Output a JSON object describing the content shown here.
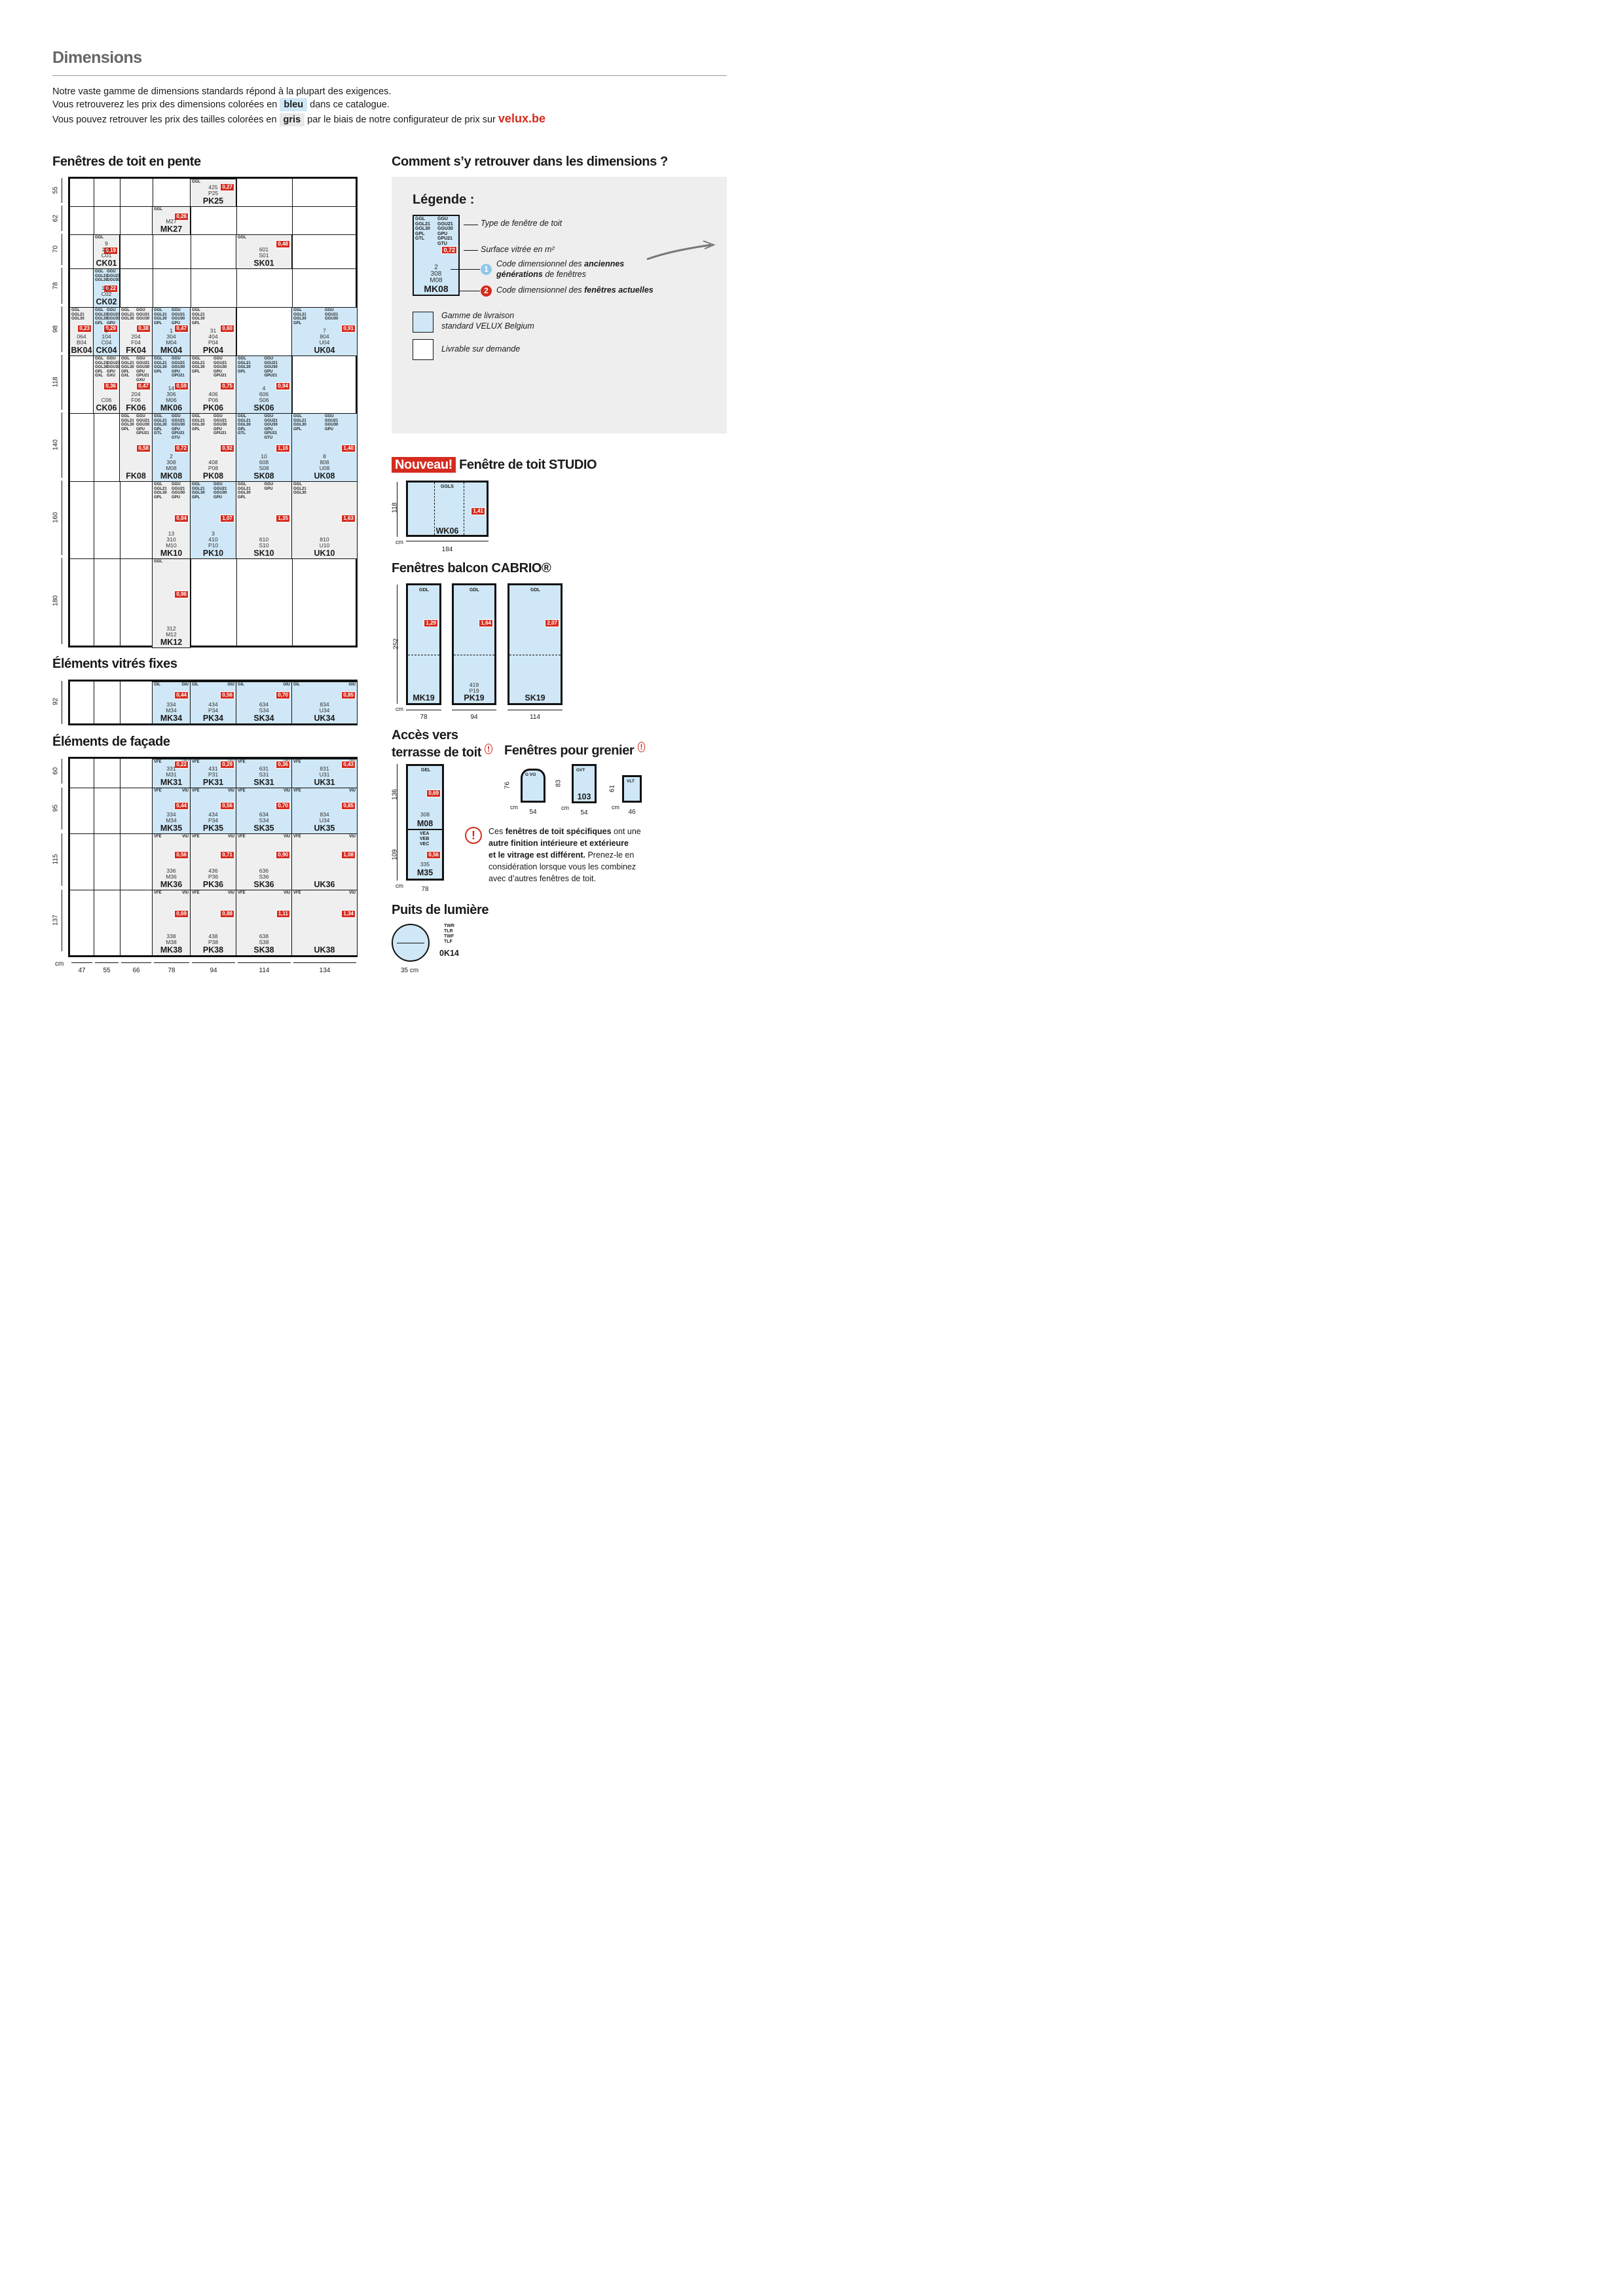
{
  "page": {
    "title": "Dimensions",
    "intro_line1": "Notre vaste gamme de dimensions standards répond à la plupart des exigences.",
    "intro_line2_pre": "Vous retrouverez les prix des dimensions colorées en",
    "intro_line2_chip": "bleu",
    "intro_line2_post": "dans ce catalogue.",
    "intro_line3_pre": "Vous pouvez retrouver les prix des tailles colorées en",
    "intro_line3_chip": "gris",
    "intro_line3_post": "par le biais de notre configurateur de prix sur",
    "intro_link": "velux.be"
  },
  "colors": {
    "blue": "#cfe7f6",
    "grey": "#efefef",
    "red": "#d52b1e"
  },
  "sections": {
    "pente": "Fenêtres de toit en pente",
    "comment": "Comment s’y retrouver dans les dimensions ?",
    "fixes": "Éléments vitrés fixes",
    "facade": "Éléments de façade",
    "nouveau": "Nouveau!",
    "studio": "Fenêtre de toit STUDIO",
    "cabrio": "Fenêtres balcon CABRIO®",
    "acces1": "Accès vers",
    "acces2": "terrasse de toit",
    "grenier": "Fenêtres pour grenier",
    "puits": "Puits de lumière"
  },
  "pente": {
    "rows": [
      "55",
      "62",
      "70",
      "78",
      "98",
      "118",
      "140",
      "160",
      "180"
    ],
    "cols": [
      "47",
      "55",
      "66",
      "78",
      "94",
      "114",
      "134"
    ],
    "unit": "cm",
    "cells": [
      {
        "t1": "GGL",
        "area": "0,27",
        "codes": "425\nP25",
        "name": "PK25"
      },
      {
        "t1": "GGL",
        "area": "0,26",
        "codes": "M27",
        "name": "MK27"
      },
      {
        "t1": "GGL",
        "area": "0,19",
        "codes": "9\n101\nC01",
        "name": "CK01"
      },
      {
        "t1": "GGL",
        "area": "0,48",
        "codes": "601\nS01",
        "name": "SK01"
      },
      {
        "t1": "GGL\nGGL21\nGGL30",
        "t2": "GGU\nGGU21\nGGU30",
        "area": "0,22",
        "codes": "102\nC02",
        "name": "CK02"
      },
      {
        "t1": "GGL\nGGL21\nGGL30",
        "area": "0,23",
        "codes": "064\nB04",
        "name": "BK04"
      },
      {
        "t1": "GGL\nGGL21\nGGL30\nGPL",
        "t2": "GGU\nGGU21\nGGU30\nGPU",
        "area": "0,29",
        "codes": "6\n104\nC04",
        "name": "CK04"
      },
      {
        "t1": "GGL\nGGL21\nGGL30",
        "t2": "GGU\nGGU21\nGGU30",
        "area": "0,38",
        "codes": "204\nF04",
        "name": "FK04"
      },
      {
        "t1": "GGL\nGGL21\nGGL30\nGPL",
        "t2": "GGU\nGGU21\nGGU30\nGPU",
        "area": "0,47",
        "codes": "1\n304\nM04",
        "name": "MK04"
      },
      {
        "t1": "GGL\nGGL21\nGGL30\nGPL",
        "area": "0,60",
        "codes": "31\n404\nP04",
        "name": "PK04"
      },
      {
        "t1": "GGL\nGGL21\nGGL30\nGPL",
        "t2": "GGU\nGGU21\nGGU30",
        "area": "0,91",
        "codes": "7\n804\nU04",
        "name": "UK04"
      },
      {
        "t1": "GGL\nGGL21\nGGL30\nGPL\nGXL",
        "t2": "GGU\nGGU21\nGGU30\nGPU\nGXU",
        "area": "0,36",
        "codes": "C06",
        "name": "CK06"
      },
      {
        "t1": "GGL\nGGL21\nGGL30\nGPL\nGXL",
        "t2": "GGU\nGGU21\nGGU30\nGPU\nGPU21\nGXU",
        "area": "0,47",
        "codes": "204\nF06",
        "name": "FK06"
      },
      {
        "t1": "GGL\nGGL21\nGGL30\nGPL",
        "t2": "GGU\nGGU21\nGGU30\nGPU\nGPU21",
        "area": "0,59",
        "codes": "14\n306\nM06",
        "name": "MK06"
      },
      {
        "t1": "GGL\nGGL21\nGGL30\nGPL",
        "t2": "GGU\nGGU21\nGGU30\nGPU\nGPU21",
        "area": "0,75",
        "codes": "406\nP06",
        "name": "PK06"
      },
      {
        "t1": "GGL\nGGL21\nGGL30\nGPL",
        "t2": "GGU\nGGU21\nGGU30\nGPU\nGPU21",
        "area": "0,94",
        "codes": "4\n606\nS06",
        "name": "SK06"
      },
      {
        "t1": "GGL\nGGL21\nGGL30\nGPL",
        "t2": "GGU\nGGU21\nGGU30\nGPU\nGPU21",
        "area": "0,58",
        "codes": "",
        "name": "FK08"
      },
      {
        "t1": "GGL\nGGL21\nGGL30\nGPL\nGTL",
        "t2": "GGU\nGGU21\nGGU30\nGPU\nGPU21\nGTU",
        "area": "0,72",
        "codes": "2\n308\nM08",
        "name": "MK08"
      },
      {
        "t1": "GGL\nGGL21\nGGL30\nGPL",
        "t2": "GGU\nGGU21\nGGU30\nGPU\nGPU21",
        "area": "0,92",
        "codes": "408\nP08",
        "name": "PK08"
      },
      {
        "t1": "GGL\nGGL21\nGGL30\nGPL\nGTL",
        "t2": "GGU\nGGU21\nGGU30\nGPU\nGPU21\nGTU",
        "area": "1,16",
        "codes": "10\n608\nS08",
        "name": "SK08"
      },
      {
        "t1": "GGL\nGGL21\nGGL30\nGPL",
        "t2": "GGU\nGGU21\nGGU30\nGPU",
        "area": "1,40",
        "codes": "8\n808\nU08",
        "name": "UK08"
      },
      {
        "t1": "GGL\nGGL21\nGGL30\nGPL",
        "t2": "GGU\nGGU21\nGGU30\nGPU",
        "area": "0,84",
        "codes": "13\n310\nM10",
        "name": "MK10"
      },
      {
        "t1": "GGL\nGGL21\nGGL30\nGPL",
        "t2": "GGU\nGGU21\nGGU30\nGPU",
        "area": "1,07",
        "codes": "3\n410\nP10",
        "name": "PK10"
      },
      {
        "t1": "GGL\nGGL21\nGGL30\nGPL",
        "t2": "GGU\nGPU",
        "area": "1,35",
        "codes": "610\nS10",
        "name": "SK10"
      },
      {
        "t1": "GGL\nGGL21\nGGL30",
        "area": "1,63",
        "codes": "810\nU10",
        "name": "UK10"
      },
      {
        "t1": "GGL",
        "area": "0,96",
        "codes": "312\nM12",
        "name": "MK12"
      }
    ]
  },
  "fixes": {
    "row": "92",
    "cells": [
      {
        "t1": "GIL",
        "t2": "GIU",
        "area": "0,44",
        "codes": "334\nM34",
        "name": "MK34"
      },
      {
        "t1": "GIL",
        "t2": "GIU",
        "area": "0,56",
        "codes": "434\nP34",
        "name": "PK34"
      },
      {
        "t1": "GIL",
        "t2": "GIU",
        "area": "0,70",
        "codes": "634\nS34",
        "name": "SK34"
      },
      {
        "t1": "GIL",
        "t2": "GIU",
        "area": "0,85",
        "codes": "834\nU34",
        "name": "UK34"
      }
    ]
  },
  "facade": {
    "rows": [
      "60",
      "95",
      "115",
      "137"
    ],
    "cols": [
      "47",
      "55",
      "66",
      "78",
      "94",
      "114",
      "134"
    ],
    "unit": "cm",
    "cells": [
      {
        "t1": "VFE",
        "t2": "VIU",
        "area": "0,22",
        "codes": "331\nM31",
        "name": "MK31"
      },
      {
        "t1": "VFE",
        "t2": "VIU",
        "area": "0,29",
        "codes": "431\nP31",
        "name": "PK31"
      },
      {
        "t1": "VFE",
        "t2": "VIU",
        "area": "0,36",
        "codes": "631\nS31",
        "name": "SK31"
      },
      {
        "t1": "VFE",
        "t2": "VIU",
        "area": "0,43",
        "codes": "831\nU31",
        "name": "UK31"
      },
      {
        "t1": "VFE",
        "t2": "VIU",
        "area": "0,44",
        "codes": "334\nM34",
        "name": "MK35"
      },
      {
        "t1": "VFE",
        "t2": "VIU",
        "area": "0,56",
        "codes": "434\nP34",
        "name": "PK35"
      },
      {
        "t1": "VFE",
        "t2": "VIU",
        "area": "0,70",
        "codes": "634\nS34",
        "name": "SK35"
      },
      {
        "t1": "VFE",
        "t2": "VIU",
        "area": "0,85",
        "codes": "834\nU34",
        "name": "UK35"
      },
      {
        "t1": "VFE",
        "t2": "VIU",
        "area": "0,56",
        "codes": "336\nM36",
        "name": "MK36"
      },
      {
        "t1": "VFE",
        "t2": "VIU",
        "area": "0,71",
        "codes": "436\nP36",
        "name": "PK36"
      },
      {
        "t1": "VFE",
        "t2": "VIU",
        "area": "0,90",
        "codes": "636\nS36",
        "name": "SK36"
      },
      {
        "t1": "VFE",
        "t2": "VIU",
        "area": "1,08",
        "codes": "",
        "name": "UK36"
      },
      {
        "t1": "VFE",
        "t2": "VIU",
        "area": "0,69",
        "codes": "338\nM38",
        "name": "MK38"
      },
      {
        "t1": "VFE",
        "t2": "VIU",
        "area": "0,88",
        "codes": "438\nP38",
        "name": "PK38"
      },
      {
        "t1": "VFE",
        "t2": "VIU",
        "area": "1,11",
        "codes": "638\nS38",
        "name": "SK38"
      },
      {
        "t1": "VFE",
        "t2": "VIU",
        "area": "1,34",
        "codes": "",
        "name": "UK38"
      }
    ]
  },
  "legend": {
    "title": "Légende :",
    "types1": "GGL\nGGL21\nGGL30\nGPL\nGTL",
    "types2": "GGU\nGGU21\nGGU30\nGPU\nGPU21\nGTU",
    "area": "0,72",
    "codes": "2\n308\nM08",
    "name": "MK08",
    "lbl_type": "Type de fenêtre de toit",
    "lbl_surface": "Surface vitrée en m²",
    "num1": "1",
    "num2": "2",
    "lbl_old1": "Code dimensionnel des ",
    "lbl_old1b": "anciennes",
    "lbl_old2b": "générations",
    "lbl_old2": " de fenêtres",
    "lbl_new": "Code dimensionnel des ",
    "lbl_newb": "fenêtres actuelles",
    "range1": "Gamme de livraison",
    "range2": "standard VELUX Belgium",
    "demand": "Livrable sur demande"
  },
  "studio": {
    "type": "GGLS",
    "area": "1,41",
    "name": "WK06",
    "h": "118",
    "w": "184",
    "unit": "cm"
  },
  "cabrio": {
    "h": "252",
    "unit": "cm",
    "items": [
      {
        "type": "GDL",
        "area": "1,29",
        "codes": "",
        "name": "MK19",
        "w": "78"
      },
      {
        "type": "GDL",
        "area": "1,64",
        "codes": "419\nP19",
        "name": "PK19",
        "w": "94"
      },
      {
        "type": "GDL",
        "area": "2,07",
        "codes": "",
        "name": "SK19",
        "w": "114"
      }
    ]
  },
  "terrasse": {
    "top": {
      "type": "GEL",
      "area": "0,69",
      "codes": "308",
      "name": "M08",
      "h": "136"
    },
    "bottom": {
      "types": "VEA\nVEB\nVEC",
      "area": "0,56",
      "codes": "335",
      "name": "M35",
      "h": "109"
    },
    "w": "78",
    "unit": "cm"
  },
  "grenier": {
    "items": [
      {
        "type": "G VO",
        "h": "76",
        "w": "54",
        "name": ""
      },
      {
        "type": "GVT",
        "h": "83",
        "w": "54",
        "name": "103"
      },
      {
        "type": "VLT",
        "h": "61",
        "w": "46",
        "name": ""
      }
    ],
    "unit": "cm"
  },
  "warning": {
    "mark": "!",
    "t1": "Ces ",
    "b1": "fenêtres de toit spécifiques",
    "t2": " ont une",
    "b2": "autre finition intérieure et extérieure",
    "b3": "et le vitrage est différent.",
    "t3": " Prenez-le en",
    "t4": "considération lorsque vous les combinez",
    "t5": "avec d’autres fenêtres de toit."
  },
  "puits": {
    "types": "TWR\nTLR\nTWF\nTLF",
    "name": "0K14",
    "dim": "35 cm"
  }
}
